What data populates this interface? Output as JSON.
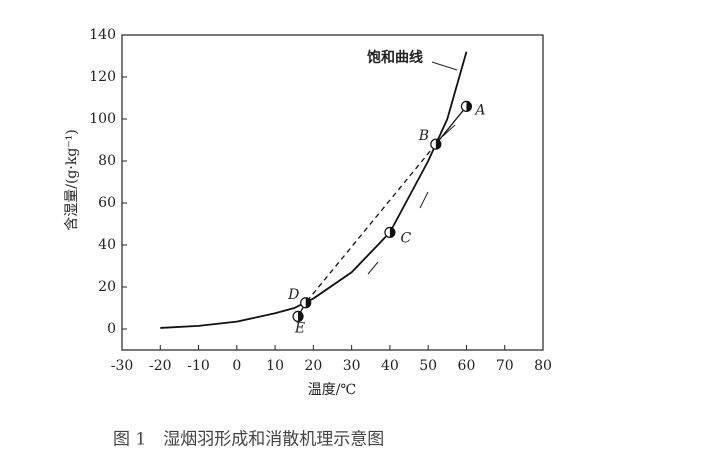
{
  "chart_data": {
    "type": "line",
    "xlabel": "温度/℃",
    "ylabel": "含湿量/(g·kg⁻¹)",
    "caption": "图 1　湿烟羽形成和消散机理示意图",
    "annotation": "饱和曲线",
    "xlim": [
      -30,
      80
    ],
    "ylim": [
      -10,
      140
    ],
    "xticks": [
      -30,
      -20,
      -10,
      0,
      10,
      20,
      30,
      40,
      50,
      60,
      70,
      80
    ],
    "yticks": [
      0,
      20,
      40,
      60,
      80,
      100,
      120,
      140
    ],
    "color": "#111",
    "series": [
      {
        "x": [
          -20,
          -10,
          0,
          10,
          15,
          20,
          30,
          40,
          50,
          52,
          55,
          60
        ],
        "values": [
          0.5,
          1.5,
          3.5,
          7.5,
          10,
          14.5,
          27,
          46,
          80,
          88,
          100,
          132
        ],
        "dash": false
      },
      {
        "x": [
          60,
          52
        ],
        "values": [
          106,
          88
        ],
        "dash": false
      },
      {
        "x": [
          52,
          18
        ],
        "values": [
          88,
          12.5
        ],
        "dash": true
      },
      {
        "x": [
          18,
          16
        ],
        "values": [
          12.5,
          6
        ],
        "dash": false
      }
    ],
    "points": [
      {
        "label": "A",
        "x": 60,
        "y": 106
      },
      {
        "label": "B",
        "x": 52,
        "y": 88
      },
      {
        "label": "C",
        "x": 40,
        "y": 46
      },
      {
        "label": "D",
        "x": 18,
        "y": 12.5
      },
      {
        "label": "E",
        "x": 16,
        "y": 6
      }
    ]
  }
}
